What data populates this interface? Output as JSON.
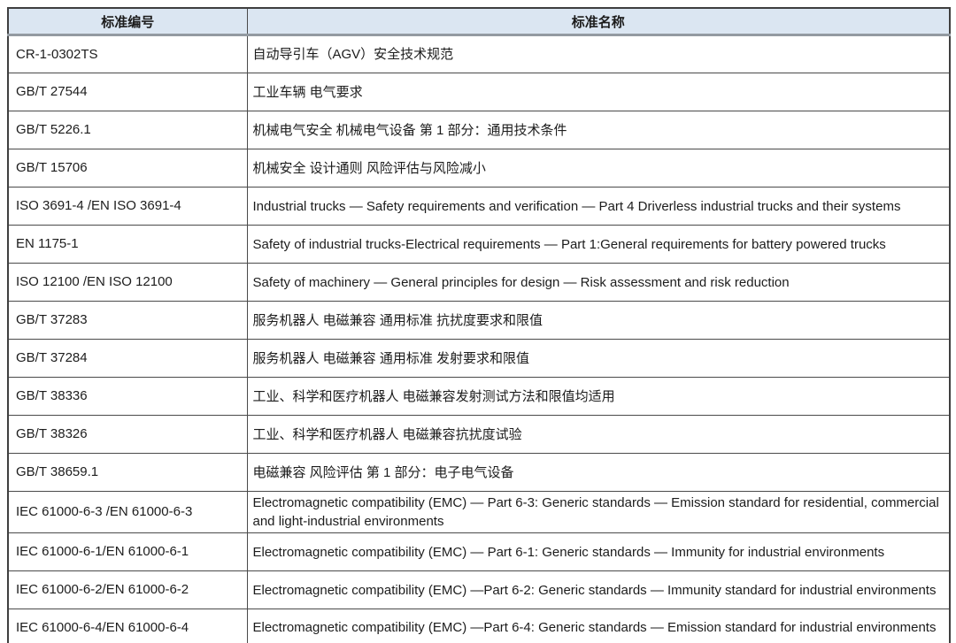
{
  "table": {
    "title": "standards-table",
    "colors": {
      "header_bg": "#dbe6f2",
      "header_text": "#1c1c1c",
      "body_text": "#1c1c1c",
      "border": "#4a4a4a",
      "header_underline": "#939aa1",
      "row_bg": "#ffffff"
    },
    "header": {
      "col_code": "标准编号",
      "col_name": "标准名称"
    },
    "rows": [
      {
        "code": "CR-1-0302TS",
        "name": "自动导引车（AGV）安全技术规范"
      },
      {
        "code": "GB/T 27544",
        "name": "工业车辆 电气要求"
      },
      {
        "code": "GB/T 5226.1",
        "name": "机械电气安全 机械电气设备 第 1 部分：通用技术条件"
      },
      {
        "code": "GB/T 15706",
        "name": "机械安全 设计通则 风险评估与风险减小"
      },
      {
        "code": "ISO 3691-4 /EN ISO 3691-4",
        "name": "Industrial trucks — Safety requirements and verification — Part 4 Driverless industrial trucks and their systems"
      },
      {
        "code": "EN 1175-1",
        "name": "Safety of industrial trucks-Electrical requirements — Part 1:General requirements for battery powered trucks"
      },
      {
        "code": "ISO 12100 /EN ISO 12100",
        "name": "Safety of machinery — General principles for design — Risk assessment and risk reduction"
      },
      {
        "code": "GB/T 37283",
        "name": "服务机器人 电磁兼容 通用标准 抗扰度要求和限值"
      },
      {
        "code": "GB/T 37284",
        "name": "服务机器人 电磁兼容 通用标准 发射要求和限值"
      },
      {
        "code": "GB/T 38336",
        "name": "工业、科学和医疗机器人 电磁兼容发射测试方法和限值均适用"
      },
      {
        "code": "GB/T 38326",
        "name": "工业、科学和医疗机器人 电磁兼容抗扰度试验"
      },
      {
        "code": "GB/T 38659.1",
        "name": "电磁兼容 风险评估 第 1 部分：电子电气设备"
      },
      {
        "code": "IEC 61000-6-3 /EN 61000-6-3",
        "name": "Electromagnetic compatibility (EMC) — Part 6-3: Generic standards — Emission standard for residential, commercial and light-industrial environments"
      },
      {
        "code": "IEC 61000-6-1/EN 61000-6-1",
        "name": "Electromagnetic compatibility (EMC) — Part 6-1: Generic standards — Immunity for industrial environments"
      },
      {
        "code": "IEC 61000-6-2/EN 61000-6-2",
        "name": "Electromagnetic compatibility (EMC) —Part 6-2: Generic standards — Immunity standard for industrial environments"
      },
      {
        "code": "IEC 61000-6-4/EN 61000-6-4",
        "name": "Electromagnetic compatibility (EMC) —Part 6-4: Generic standards — Emission standard for industrial environments"
      }
    ]
  }
}
